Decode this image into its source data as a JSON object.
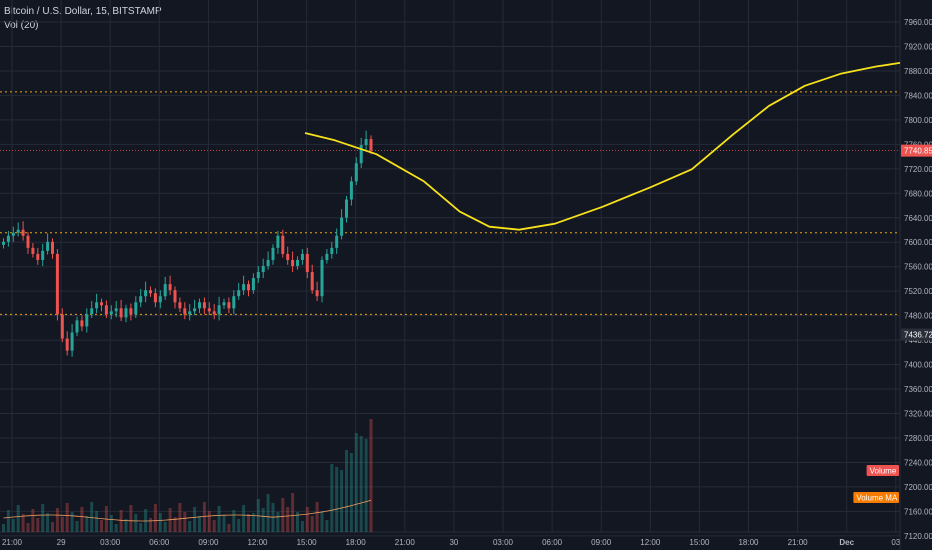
{
  "legend": {
    "symbol": "Bitcoin / U.S. Dollar, 15, BITSTAMP",
    "volume": "Vol (20)"
  },
  "colors": {
    "background": "#131722",
    "grid": "#262b38",
    "up": "#26a69a",
    "down": "#ef5350",
    "forecast": "#f7e21a",
    "level": "#f0a30a",
    "volume_ma": "#f0a060"
  },
  "chart_data": {
    "type": "candlestick",
    "y_axis_ticks": [
      "7960.00",
      "7920.00",
      "7880.00",
      "7840.00",
      "7800.00",
      "7760.00",
      "7720.00",
      "7680.00",
      "7640.00",
      "7600.00",
      "7560.00",
      "7520.00",
      "7480.00",
      "7440.00",
      "7400.00",
      "7360.00",
      "7320.00",
      "7280.00",
      "7240.00",
      "7200.00",
      "7160.00",
      "7120.00"
    ],
    "x_axis_ticks": [
      "21:00",
      "29",
      "03:00",
      "06:00",
      "09:00",
      "12:00",
      "15:00",
      "18:00",
      "21:00",
      "30",
      "03:00",
      "06:00",
      "09:00",
      "12:00",
      "15:00",
      "18:00",
      "21:00",
      "Dec",
      "03"
    ],
    "ylim": [
      7110,
      7990
    ],
    "price_tags": [
      {
        "label": "7740.85",
        "value": 7740.85,
        "color": "#ef5350"
      },
      {
        "label": "7436.72",
        "value": 7436.72,
        "color": "#2a2e39"
      }
    ],
    "pane_tags": [
      {
        "label": "Volume",
        "color": "#ef5350"
      },
      {
        "label": "Volume MA",
        "color": "#f57c00"
      }
    ],
    "horizontal_levels": [
      7838,
      7605,
      7470
    ],
    "candles_close": [
      7590,
      7600,
      7605,
      7610,
      7600,
      7580,
      7570,
      7560,
      7575,
      7590,
      7570,
      7470,
      7430,
      7410,
      7440,
      7460,
      7450,
      7470,
      7480,
      7490,
      7485,
      7470,
      7475,
      7480,
      7465,
      7480,
      7470,
      7490,
      7500,
      7510,
      7505,
      7490,
      7500,
      7520,
      7510,
      7490,
      7480,
      7470,
      7475,
      7480,
      7490,
      7480,
      7475,
      7470,
      7485,
      7490,
      7480,
      7500,
      7510,
      7520,
      7510,
      7530,
      7540,
      7550,
      7560,
      7580,
      7600,
      7570,
      7560,
      7550,
      7560,
      7570,
      7540,
      7510,
      7500,
      7560,
      7570,
      7580,
      7600,
      7630,
      7660,
      7690,
      7720,
      7750,
      7760,
      7741
    ],
    "forecast_line": [
      {
        "t": 0,
        "value": 7770
      },
      {
        "t": 0.05,
        "value": 7758
      },
      {
        "t": 0.12,
        "value": 7735
      },
      {
        "t": 0.2,
        "value": 7690
      },
      {
        "t": 0.26,
        "value": 7640
      },
      {
        "t": 0.31,
        "value": 7615
      },
      {
        "t": 0.36,
        "value": 7610
      },
      {
        "t": 0.42,
        "value": 7620
      },
      {
        "t": 0.5,
        "value": 7648
      },
      {
        "t": 0.58,
        "value": 7680
      },
      {
        "t": 0.65,
        "value": 7710
      },
      {
        "t": 0.72,
        "value": 7768
      },
      {
        "t": 0.78,
        "value": 7815
      },
      {
        "t": 0.84,
        "value": 7848
      },
      {
        "t": 0.9,
        "value": 7868
      },
      {
        "t": 0.96,
        "value": 7880
      },
      {
        "t": 1,
        "value": 7886
      }
    ]
  }
}
